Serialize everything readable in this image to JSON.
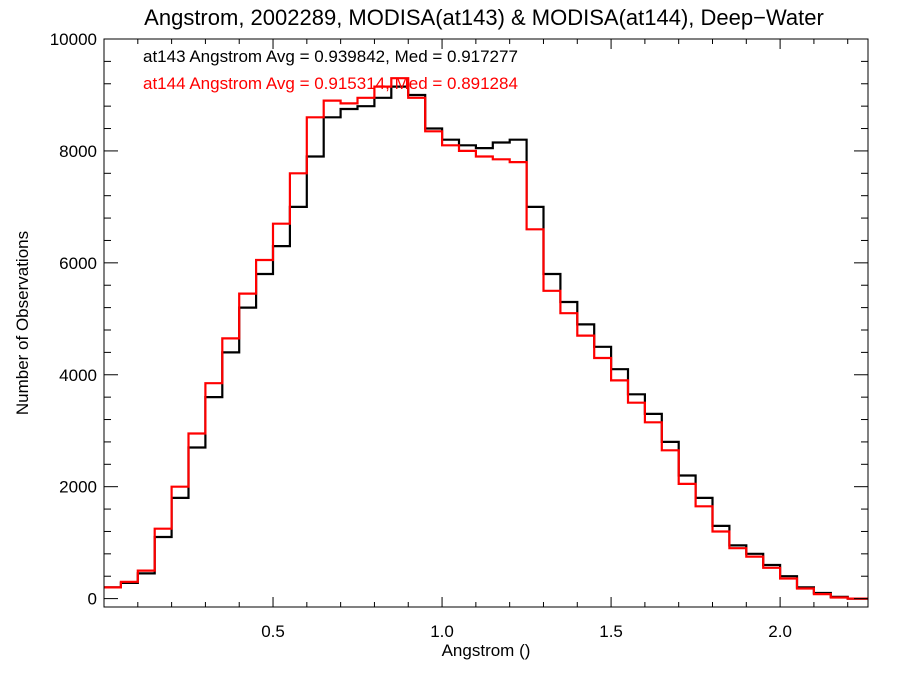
{
  "chart_data": {
    "type": "line",
    "step": true,
    "title": "Angstrom, 2002289, MODISA(at143) & MODISA(at144), Deep−Water",
    "xlabel": "Angstrom ()",
    "ylabel": "Number of Observations",
    "xlim": [
      0.0,
      2.26
    ],
    "ylim": [
      -150,
      10000
    ],
    "xticks": [
      0.5,
      1.0,
      1.5,
      2.0
    ],
    "xtick_labels": [
      "0.5",
      "1.0",
      "1.5",
      "2.0"
    ],
    "yticks": [
      0,
      2000,
      4000,
      6000,
      8000,
      10000
    ],
    "ytick_labels": [
      "0",
      "2000",
      "4000",
      "6000",
      "8000",
      "10000"
    ],
    "grid": false,
    "legend_position": "top-left",
    "annotations": [
      {
        "text": "at143 Angstrom Avg = 0.939842, Med = 0.917277",
        "color": "#000000"
      },
      {
        "text": "at144 Angstrom Avg = 0.915314, Med = 0.891284",
        "color": "#ff0000"
      }
    ],
    "series": [
      {
        "color": "#000000",
        "x": [
          0.0,
          0.05,
          0.1,
          0.15,
          0.2,
          0.25,
          0.3,
          0.35,
          0.4,
          0.45,
          0.5,
          0.55,
          0.6,
          0.65,
          0.7,
          0.75,
          0.8,
          0.85,
          0.9,
          0.95,
          1.0,
          1.05,
          1.1,
          1.15,
          1.2,
          1.25,
          1.3,
          1.35,
          1.4,
          1.45,
          1.5,
          1.55,
          1.6,
          1.65,
          1.7,
          1.75,
          1.8,
          1.85,
          1.9,
          1.95,
          2.0,
          2.05,
          2.1,
          2.15,
          2.2,
          2.26
        ],
        "values": [
          200,
          280,
          450,
          1100,
          1800,
          2700,
          3600,
          4400,
          5200,
          5800,
          6300,
          7000,
          7900,
          8600,
          8750,
          8800,
          8950,
          9150,
          9000,
          8400,
          8200,
          8100,
          8050,
          8150,
          8200,
          7000,
          5800,
          5300,
          4900,
          4500,
          4100,
          3650,
          3300,
          2800,
          2200,
          1800,
          1300,
          950,
          800,
          600,
          400,
          200,
          100,
          30,
          0,
          0
        ]
      },
      {
        "color": "#ff0000",
        "x": [
          0.0,
          0.05,
          0.1,
          0.15,
          0.2,
          0.25,
          0.3,
          0.35,
          0.4,
          0.45,
          0.5,
          0.55,
          0.6,
          0.65,
          0.7,
          0.75,
          0.8,
          0.85,
          0.9,
          0.95,
          1.0,
          1.05,
          1.1,
          1.15,
          1.2,
          1.25,
          1.3,
          1.35,
          1.4,
          1.45,
          1.5,
          1.55,
          1.6,
          1.65,
          1.7,
          1.75,
          1.8,
          1.85,
          1.9,
          1.95,
          2.0,
          2.05,
          2.1,
          2.15,
          2.2,
          2.26
        ],
        "values": [
          200,
          300,
          500,
          1250,
          2000,
          2950,
          3850,
          4650,
          5450,
          6050,
          6700,
          7600,
          8600,
          8900,
          8850,
          8950,
          9150,
          9300,
          8950,
          8350,
          8100,
          8000,
          7900,
          7850,
          7800,
          6600,
          5500,
          5100,
          4700,
          4300,
          3900,
          3500,
          3150,
          2650,
          2050,
          1650,
          1200,
          900,
          750,
          550,
          360,
          180,
          80,
          20,
          0,
          0
        ]
      }
    ]
  }
}
